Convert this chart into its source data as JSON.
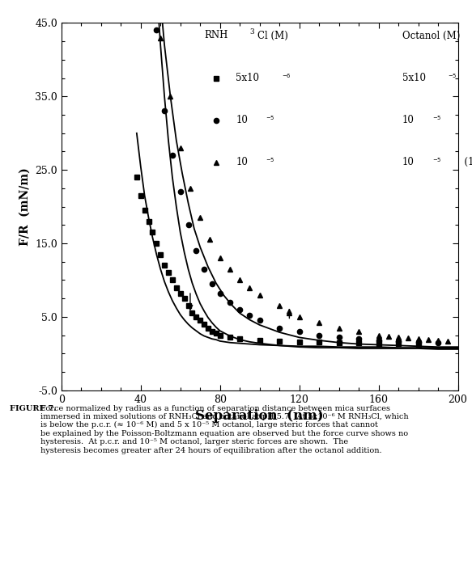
{
  "xlabel": "Separation  (nm)",
  "ylabel": "F/R  (mN/m)",
  "xlim": [
    0,
    200
  ],
  "ylim": [
    -5.0,
    45.0
  ],
  "xticks": [
    0,
    40,
    80,
    120,
    160,
    200
  ],
  "yticks": [
    -5.0,
    5.0,
    15.0,
    25.0,
    35.0,
    45.0
  ],
  "series1_x": [
    38,
    40,
    42,
    44,
    46,
    48,
    50,
    52,
    54,
    56,
    58,
    60,
    62,
    64,
    66,
    68,
    70,
    72,
    74,
    76,
    78,
    80,
    85,
    90,
    100,
    110,
    120,
    130,
    140,
    150,
    160,
    170,
    180
  ],
  "series1_y": [
    24.0,
    21.5,
    19.5,
    18.0,
    16.5,
    15.0,
    13.5,
    12.0,
    11.0,
    10.0,
    9.0,
    8.2,
    7.5,
    6.5,
    5.5,
    5.0,
    4.5,
    4.0,
    3.5,
    3.0,
    2.8,
    2.5,
    2.2,
    2.0,
    1.8,
    1.7,
    1.6,
    1.6,
    1.5,
    1.5,
    1.4,
    1.4,
    1.3
  ],
  "series2_x": [
    48,
    52,
    56,
    60,
    64,
    68,
    72,
    76,
    80,
    85,
    90,
    95,
    100,
    110,
    120,
    130,
    140,
    150,
    160,
    170,
    180,
    190
  ],
  "series2_y": [
    44.0,
    33.0,
    27.0,
    22.0,
    17.5,
    14.0,
    11.5,
    9.5,
    8.2,
    7.0,
    6.0,
    5.2,
    4.5,
    3.5,
    3.0,
    2.5,
    2.2,
    2.0,
    1.8,
    1.7,
    1.6,
    1.5
  ],
  "series3_x": [
    50,
    55,
    60,
    65,
    70,
    75,
    80,
    85,
    90,
    95,
    100,
    110,
    115,
    120,
    130,
    140,
    150,
    160,
    165,
    170,
    175,
    180,
    185,
    190,
    195
  ],
  "series3_y": [
    43.0,
    35.0,
    28.0,
    22.5,
    18.5,
    15.5,
    13.0,
    11.5,
    10.0,
    9.0,
    8.0,
    6.5,
    5.5,
    5.0,
    4.2,
    3.5,
    3.0,
    2.5,
    2.3,
    2.2,
    2.1,
    2.0,
    1.9,
    1.8,
    1.7
  ],
  "curve1_x": [
    38,
    40,
    42,
    44,
    46,
    48,
    50,
    52,
    54,
    56,
    58,
    60,
    62,
    64,
    66,
    68,
    70,
    72,
    74,
    76,
    78,
    80,
    85,
    90,
    100,
    110,
    120,
    130,
    140,
    150,
    160,
    170,
    180,
    190,
    200
  ],
  "curve1_y": [
    30.0,
    25.5,
    21.5,
    18.5,
    15.8,
    13.5,
    11.5,
    9.8,
    8.4,
    7.2,
    6.2,
    5.3,
    4.6,
    4.0,
    3.5,
    3.1,
    2.7,
    2.4,
    2.2,
    2.0,
    1.9,
    1.7,
    1.5,
    1.4,
    1.2,
    1.1,
    1.0,
    1.0,
    0.9,
    0.9,
    0.9,
    0.8,
    0.8,
    0.8,
    0.8
  ],
  "curve2_x": [
    48,
    50,
    52,
    54,
    56,
    58,
    60,
    62,
    64,
    66,
    68,
    70,
    72,
    74,
    76,
    78,
    80,
    85,
    90,
    95,
    100,
    110,
    120,
    130,
    140,
    150,
    160,
    170,
    180,
    190,
    200
  ],
  "curve2_y": [
    50.0,
    42.0,
    35.0,
    29.0,
    24.0,
    20.0,
    16.5,
    13.8,
    11.5,
    9.6,
    8.1,
    6.8,
    5.8,
    4.9,
    4.2,
    3.6,
    3.1,
    2.4,
    1.9,
    1.6,
    1.4,
    1.1,
    0.9,
    0.8,
    0.8,
    0.7,
    0.7,
    0.7,
    0.7,
    0.6,
    0.6
  ],
  "curve3_x": [
    50,
    52,
    55,
    58,
    61,
    64,
    67,
    70,
    74,
    78,
    82,
    86,
    90,
    95,
    100,
    110,
    120,
    130,
    140,
    150,
    160,
    170,
    180,
    190,
    200
  ],
  "curve3_y": [
    48.0,
    42.0,
    35.0,
    29.0,
    24.5,
    20.5,
    17.0,
    14.5,
    11.8,
    9.6,
    7.9,
    6.6,
    5.5,
    4.6,
    3.9,
    2.9,
    2.2,
    1.8,
    1.5,
    1.3,
    1.2,
    1.1,
    1.0,
    0.9,
    0.9
  ],
  "caption_bold": "FIGURE 7.",
  "caption_normal": "  Force normalized by radius as a function of separation distance between mica surfaces immersed in mixed solutions of RNH₃Cl and octanol at pH 5.7.  At 5x10⁻⁶ M RNH₃Cl, which is below the p.c.r. (≈ 10⁻⁶ M) and 5 x 10⁻⁵ M octanol, large steric forces that cannot be explained by the Poisson-Boltzmann equation are observed but the force curve shows no hysteresis.  At p.c.r. and 10⁻⁵ M octanol, larger steric forces are shown.  The hysteresis becomes greater after 24 hours of equilibration after the octanol addition.",
  "background_color": "#ffffff"
}
